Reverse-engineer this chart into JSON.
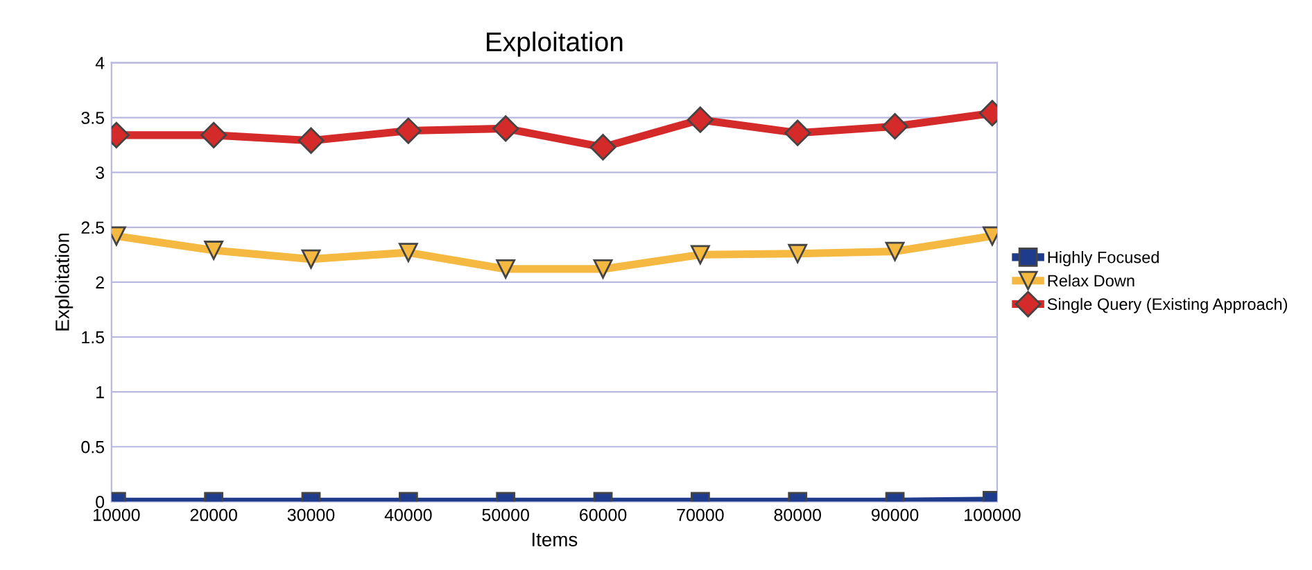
{
  "chart_data": {
    "type": "line",
    "title": "Exploitation",
    "xlabel": "Items",
    "ylabel": "Exploitation",
    "categories": [
      "10000",
      "20000",
      "30000",
      "40000",
      "50000",
      "60000",
      "70000",
      "80000",
      "90000",
      "100000"
    ],
    "series": [
      {
        "name": "Highly Focused",
        "color": "#1f3c8c",
        "marker": "square",
        "values": [
          0,
          0,
          0,
          0,
          0,
          0,
          0,
          0,
          0,
          0.01
        ]
      },
      {
        "name": "Relax Down",
        "color": "#f5b841",
        "marker": "triangle",
        "values": [
          2.42,
          2.29,
          2.21,
          2.27,
          2.12,
          2.12,
          2.25,
          2.26,
          2.28,
          2.42
        ]
      },
      {
        "name": "Single Query (Existing Approach)",
        "color": "#d42a2a",
        "marker": "diamond",
        "values": [
          3.34,
          3.34,
          3.29,
          3.38,
          3.4,
          3.23,
          3.48,
          3.36,
          3.42,
          3.54
        ]
      }
    ],
    "ylim": [
      0,
      4
    ],
    "yticks": [
      0,
      0.5,
      1,
      1.5,
      2,
      2.5,
      3,
      3.5,
      4
    ],
    "grid": "y",
    "legend": "right",
    "line_style": "solid"
  }
}
